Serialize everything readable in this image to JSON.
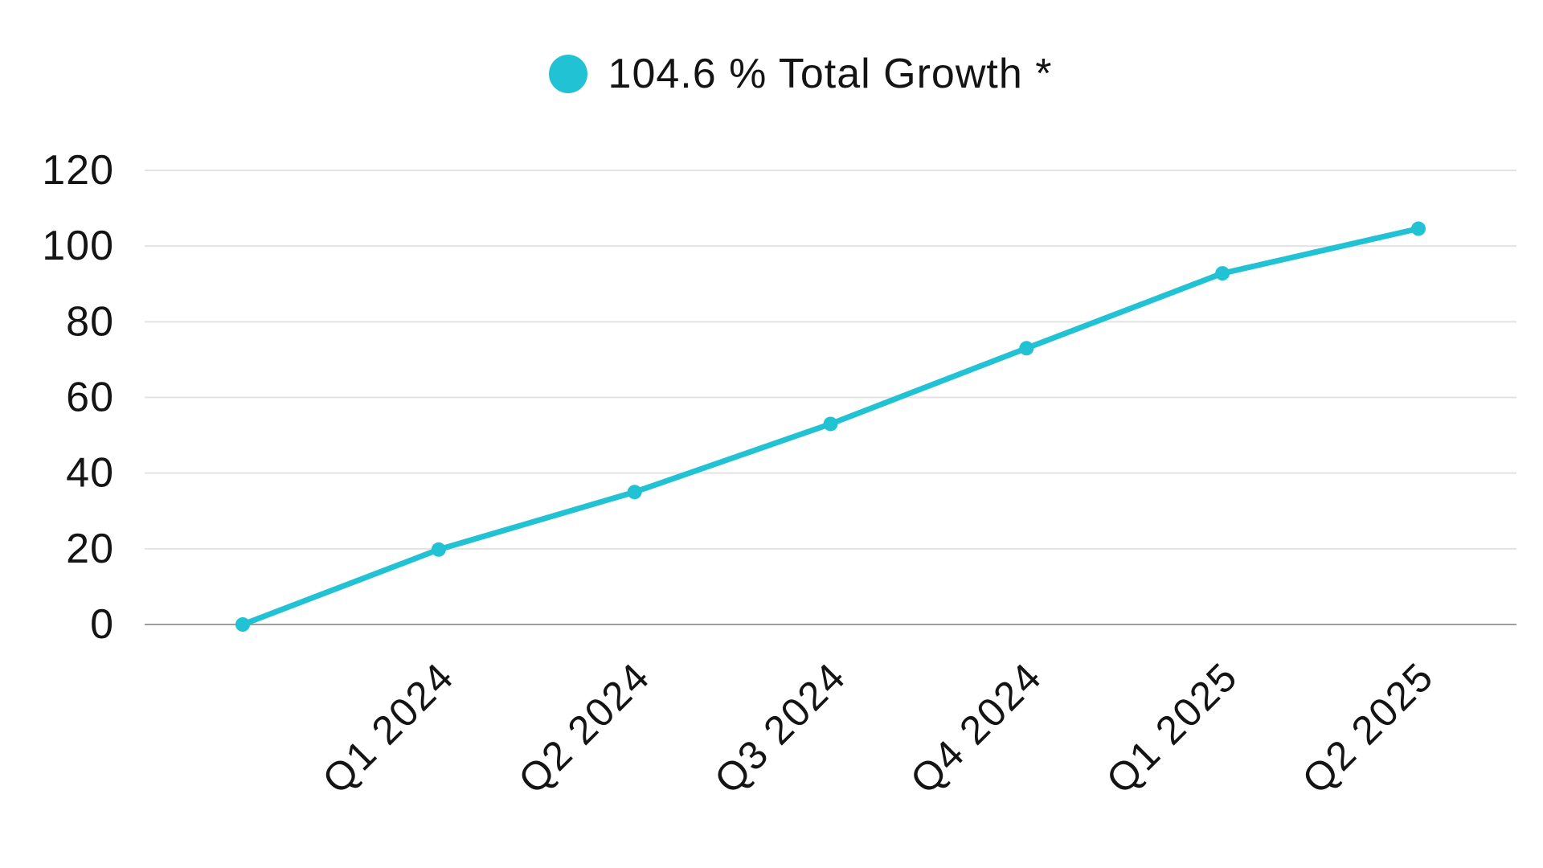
{
  "background_color": "#ffffff",
  "legend": {
    "label": "104.6 % Total Growth *",
    "swatch_color": "#21c2d4"
  },
  "colors": {
    "series": "#21c2d4",
    "grid_line": "#e3e3e3",
    "zero_line": "#9e9e9e",
    "text": "#141414"
  },
  "chart_data": {
    "type": "line",
    "title": "",
    "legend_entries": [
      "104.6 % Total Growth *"
    ],
    "legend_position": "top-center",
    "categories": [
      "",
      "Q1 2024",
      "Q2 2024",
      "Q3 2024",
      "Q4 2024",
      "Q1 2025",
      "Q2 2025"
    ],
    "series": [
      {
        "name": "104.6 % Total Growth *",
        "color": "#21c2d4",
        "values": [
          0,
          19.8,
          35,
          53,
          73,
          92.8,
          104.6
        ]
      }
    ],
    "xlabel": "",
    "ylabel": "",
    "y_ticks": [
      0,
      20,
      40,
      60,
      80,
      100,
      120
    ],
    "ylim": [
      0,
      120
    ],
    "x_tick_rotation_deg": 45,
    "grid": true,
    "markers": true,
    "note": "first data point is an unlabeled baseline at 0; final point equals the 104.6 % total growth shown in the legend"
  }
}
